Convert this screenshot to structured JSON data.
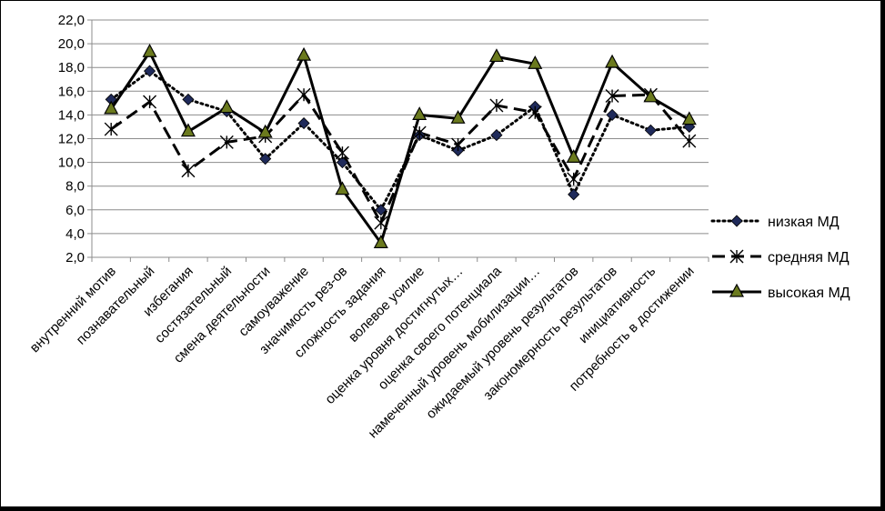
{
  "chart_data": {
    "type": "line",
    "ylim": [
      2.0,
      22.0
    ],
    "ytick_step": 2.0,
    "yticks": [
      "2,0",
      "4,0",
      "6,0",
      "8,0",
      "10,0",
      "12,0",
      "14,0",
      "16,0",
      "18,0",
      "20,0",
      "22,0"
    ],
    "grid": "horizontal",
    "legend_position": "right",
    "categories": [
      "внутренний мотив",
      "познавательный",
      "избегания",
      "состязательный",
      "смена деятельности",
      "самоуважение",
      "значимость рез-ов",
      "сложность задания",
      "волевое усилие",
      "оценка уровня достигнутых…",
      "оценка своего потенциала",
      "намеченный уровень мобилизации…",
      "ожидаемый уровень результатов",
      "закономерность результатов",
      "инициативность",
      "потребность в достижении"
    ],
    "series": [
      {
        "name": "низкая МД",
        "style": "dotted",
        "marker": "diamond",
        "color": "#000000",
        "marker_color": "#1f2a5a",
        "values": [
          15.3,
          17.7,
          15.3,
          14.3,
          10.3,
          13.3,
          10.0,
          6.0,
          12.3,
          11.0,
          12.3,
          14.7,
          7.3,
          14.0,
          12.7,
          13.0
        ]
      },
      {
        "name": "средняя МД",
        "style": "dashed",
        "marker": "star",
        "color": "#000000",
        "marker_color": "#000000",
        "values": [
          12.8,
          15.1,
          9.3,
          11.7,
          12.2,
          15.7,
          10.8,
          4.9,
          12.5,
          11.5,
          14.8,
          14.2,
          8.6,
          15.6,
          15.7,
          11.8
        ]
      },
      {
        "name": "высокая МД",
        "style": "solid",
        "marker": "triangle",
        "color": "#000000",
        "marker_color": "#6b7a1e",
        "values": [
          14.5,
          19.3,
          12.6,
          14.6,
          12.5,
          19.0,
          7.7,
          3.2,
          14.0,
          13.7,
          18.9,
          18.3,
          10.4,
          18.4,
          15.5,
          13.6
        ]
      }
    ]
  }
}
